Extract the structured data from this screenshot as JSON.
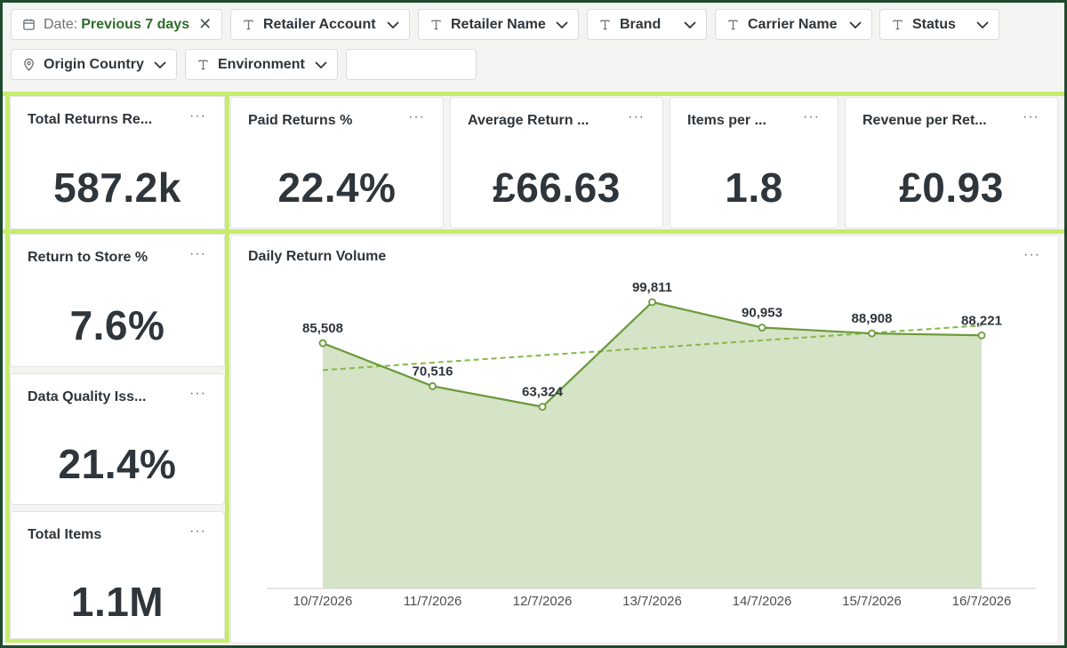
{
  "filters": {
    "date": {
      "prefix": "Date:",
      "value": "Previous 7 days"
    },
    "retailer_account": "Retailer Account",
    "retailer_name": "Retailer Name",
    "brand": "Brand",
    "carrier_name": "Carrier Name",
    "status": "Status",
    "origin_country": "Origin Country",
    "environment": "Environment",
    "text_filter_value": ""
  },
  "kpis": {
    "total_returns": {
      "title": "Total Returns Re...",
      "value": "587.2k"
    },
    "paid_returns": {
      "title": "Paid Returns %",
      "value": "22.4%"
    },
    "average_return": {
      "title": "Average Return ...",
      "value": "£66.63"
    },
    "items_per": {
      "title": "Items per ...",
      "value": "1.8"
    },
    "revenue_per": {
      "title": "Revenue per Ret...",
      "value": "£0.93"
    },
    "return_to_store": {
      "title": "Return to Store %",
      "value": "7.6%"
    },
    "data_quality": {
      "title": "Data Quality Iss...",
      "value": "21.4%"
    },
    "total_items": {
      "title": "Total Items",
      "value": "1.1M"
    }
  },
  "chart": {
    "title": "Daily Return Volume",
    "menu": "···"
  },
  "colors": {
    "accent_green": "#6a9a3a",
    "area_fill": "#d5e3c6",
    "trend_green": "#86b84a",
    "panel_divider": "#c6ec6d"
  },
  "chart_data": {
    "type": "area",
    "title": "Daily Return Volume",
    "categories": [
      "10/7/2026",
      "11/7/2026",
      "12/7/2026",
      "13/7/2026",
      "14/7/2026",
      "15/7/2026",
      "16/7/2026"
    ],
    "series": [
      {
        "values": [
          85508,
          70516,
          63324,
          99811,
          90953,
          88908,
          88221
        ]
      }
    ],
    "data_labels": [
      "85,508",
      "70,516",
      "63,324",
      "99,811",
      "90,953",
      "88,908",
      "88,221"
    ],
    "trendline": true,
    "ylim": [
      0,
      110000
    ],
    "grid": false,
    "legend": "none"
  }
}
